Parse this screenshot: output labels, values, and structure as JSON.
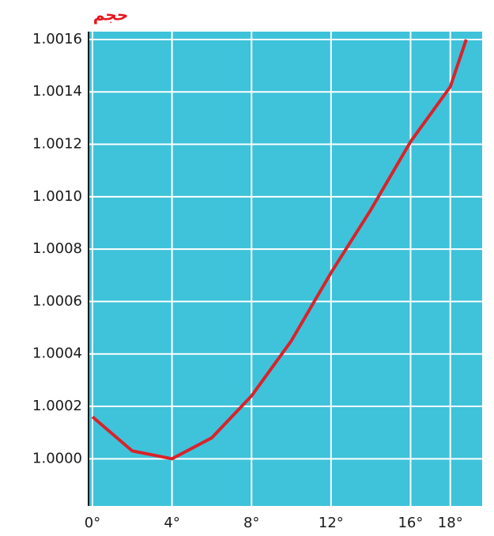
{
  "chart_data": {
    "type": "line",
    "y_label": "حجم",
    "x": [
      0,
      2,
      4,
      6,
      8,
      10,
      12,
      14,
      16,
      18,
      18.8
    ],
    "series": [
      {
        "color": "#d8232a",
        "values": [
          1.00016,
          1.00003,
          1.0,
          1.00008,
          1.00024,
          1.00045,
          1.00071,
          1.00095,
          1.00121,
          1.00142,
          1.0016
        ]
      }
    ],
    "xlim": [
      0,
      19.6
    ],
    "ylim": [
      0.99982,
      1.00163
    ],
    "xticks": [
      {
        "value": 0,
        "label": "0°"
      },
      {
        "value": 4,
        "label": "4°"
      },
      {
        "value": 8,
        "label": "8°"
      },
      {
        "value": 12,
        "label": "12°"
      },
      {
        "value": 16,
        "label": "16°"
      },
      {
        "value": 18,
        "label": "18°"
      }
    ],
    "yticks": [
      {
        "value": 1.0,
        "label": "1.0000"
      },
      {
        "value": 1.0002,
        "label": "1.0002"
      },
      {
        "value": 1.0004,
        "label": "1.0004"
      },
      {
        "value": 1.0006,
        "label": "1.0006"
      },
      {
        "value": 1.0008,
        "label": "1.0008"
      },
      {
        "value": 1.001,
        "label": "1.0010"
      },
      {
        "value": 1.0012,
        "label": "1.0012"
      },
      {
        "value": 1.0014,
        "label": "1.0014"
      },
      {
        "value": 1.0016,
        "label": "1.0016"
      }
    ],
    "grid": true,
    "background": "#3ec3da"
  }
}
